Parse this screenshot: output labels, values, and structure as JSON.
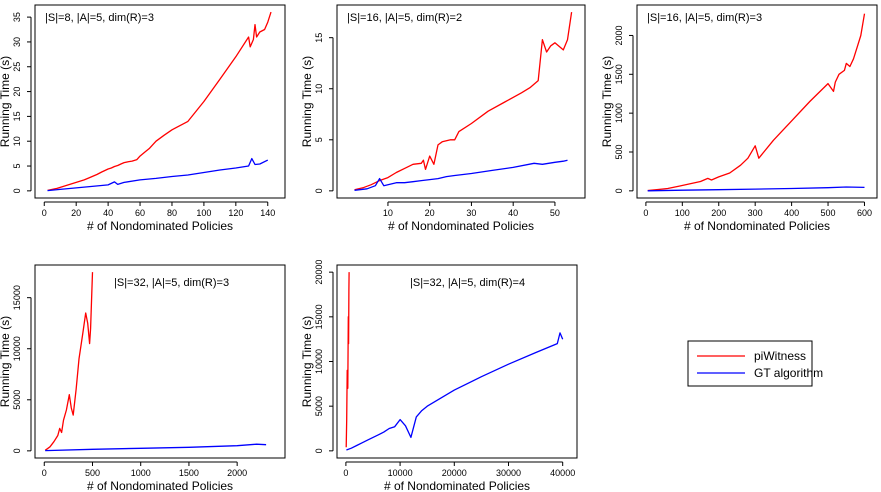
{
  "chart_data": [
    {
      "type": "line",
      "title": "|S|=8, |A|=5, dim(R)=3",
      "xlabel": "# of Nondominated Policies",
      "ylabel": "Running Time (s)",
      "xlim": [
        0,
        145
      ],
      "ylim": [
        0,
        36
      ],
      "xticks": [
        0,
        20,
        40,
        60,
        80,
        100,
        120,
        140
      ],
      "yticks": [
        0,
        5,
        10,
        15,
        20,
        25,
        30,
        35
      ],
      "series": [
        {
          "name": "piWitness",
          "color": "#ff0000",
          "x": [
            2,
            5,
            8,
            12,
            15,
            18,
            22,
            25,
            28,
            30,
            33,
            36,
            38,
            40,
            42,
            44,
            46,
            48,
            50,
            53,
            55,
            58,
            60,
            63,
            66,
            70,
            75,
            80,
            90,
            100,
            110,
            120,
            128,
            129,
            131,
            132,
            133,
            135,
            138,
            140,
            142
          ],
          "y": [
            0.1,
            0.3,
            0.5,
            0.9,
            1.2,
            1.5,
            1.9,
            2.2,
            2.6,
            2.9,
            3.3,
            3.8,
            4.1,
            4.4,
            4.6,
            4.9,
            5.1,
            5.4,
            5.7,
            5.9,
            6.0,
            6.3,
            7.0,
            7.8,
            8.6,
            10.0,
            11.2,
            12.3,
            14.0,
            18.0,
            22.5,
            27.0,
            31.0,
            29.0,
            30.5,
            33.5,
            31.0,
            32.0,
            32.5,
            34.0,
            36.0
          ]
        },
        {
          "name": "GT algorithm",
          "color": "#0000ff",
          "x": [
            2,
            10,
            20,
            30,
            40,
            44,
            46,
            50,
            60,
            70,
            80,
            90,
            100,
            110,
            120,
            128,
            130,
            132,
            135,
            140
          ],
          "y": [
            0.05,
            0.3,
            0.6,
            0.9,
            1.2,
            1.8,
            1.3,
            1.7,
            2.2,
            2.5,
            2.9,
            3.2,
            3.7,
            4.2,
            4.6,
            5.0,
            6.5,
            5.3,
            5.4,
            6.2
          ]
        }
      ]
    },
    {
      "type": "line",
      "title": "|S|=16, |A|=5, dim(R)=2",
      "xlabel": "# of Nondominated Policies",
      "ylabel": "Running Time (s)",
      "xlim": [
        0,
        55
      ],
      "ylim": [
        0,
        17.5
      ],
      "xticks": [
        10,
        20,
        30,
        40,
        50
      ],
      "yticks": [
        0,
        5,
        10,
        15
      ],
      "series": [
        {
          "name": "piWitness",
          "color": "#ff0000",
          "x": [
            2,
            4,
            6,
            8,
            10,
            12,
            14,
            16,
            18,
            18.5,
            19,
            20,
            21,
            22,
            23,
            24,
            25,
            26,
            27,
            30,
            34,
            38,
            42,
            44,
            46,
            47,
            48,
            49,
            50,
            52,
            53,
            54
          ],
          "y": [
            0.1,
            0.3,
            0.6,
            1.0,
            1.3,
            1.8,
            2.2,
            2.6,
            2.7,
            3.0,
            2.1,
            3.4,
            2.6,
            4.5,
            4.8,
            4.9,
            5.0,
            5.0,
            5.8,
            6.6,
            7.8,
            8.7,
            9.6,
            10.1,
            10.8,
            14.8,
            13.6,
            14.2,
            14.5,
            13.8,
            14.8,
            17.5
          ]
        },
        {
          "name": "GT algorithm",
          "color": "#0000ff",
          "x": [
            2,
            5,
            7,
            8,
            9,
            10,
            12,
            14,
            16,
            18,
            20,
            22,
            24,
            26,
            28,
            30,
            35,
            40,
            45,
            47,
            50,
            52,
            53
          ],
          "y": [
            0.05,
            0.2,
            0.5,
            1.2,
            0.5,
            0.6,
            0.8,
            0.8,
            0.9,
            1.0,
            1.1,
            1.2,
            1.4,
            1.5,
            1.6,
            1.7,
            2.0,
            2.3,
            2.7,
            2.6,
            2.8,
            2.9,
            3.0
          ]
        }
      ]
    },
    {
      "type": "line",
      "title": "|S|=16, |A|=5, dim(R)=3",
      "xlabel": "# of Nondominated Policies",
      "ylabel": "Running Time (s)",
      "xlim": [
        0,
        610
      ],
      "ylim": [
        0,
        2300
      ],
      "xticks": [
        0,
        100,
        200,
        300,
        400,
        500,
        600
      ],
      "yticks": [
        0,
        500,
        1000,
        1500,
        2000
      ],
      "series": [
        {
          "name": "piWitness",
          "color": "#ff0000",
          "x": [
            5,
            30,
            60,
            90,
            120,
            150,
            170,
            180,
            200,
            230,
            260,
            280,
            300,
            310,
            350,
            400,
            450,
            500,
            515,
            520,
            530,
            545,
            550,
            560,
            570,
            580,
            590,
            600
          ],
          "y": [
            5,
            15,
            30,
            60,
            90,
            120,
            160,
            140,
            180,
            230,
            330,
            420,
            580,
            420,
            650,
            900,
            1150,
            1380,
            1280,
            1400,
            1500,
            1550,
            1640,
            1600,
            1700,
            1850,
            2000,
            2280
          ]
        },
        {
          "name": "GT algorithm",
          "color": "#0000ff",
          "x": [
            5,
            100,
            200,
            300,
            400,
            500,
            550,
            600
          ],
          "y": [
            1,
            8,
            15,
            22,
            30,
            40,
            50,
            45
          ]
        }
      ]
    },
    {
      "type": "line",
      "title": "|S|=32, |A|=5, dim(R)=3",
      "xlabel": "# of Nondominated Policies",
      "ylabel": "Running Time (s)",
      "xlim": [
        0,
        2400
      ],
      "ylim": [
        0,
        17500
      ],
      "xticks": [
        0,
        500,
        1000,
        1500,
        2000
      ],
      "yticks": [
        0,
        5000,
        10000,
        15000
      ],
      "series": [
        {
          "name": "piWitness",
          "color": "#ff0000",
          "x": [
            10,
            60,
            100,
            140,
            160,
            180,
            200,
            230,
            260,
            280,
            300,
            330,
            360,
            400,
            430,
            450,
            470,
            480,
            500
          ],
          "y": [
            50,
            400,
            900,
            1500,
            2200,
            1800,
            3000,
            4000,
            5500,
            4200,
            3500,
            6000,
            9000,
            11500,
            13500,
            12500,
            10500,
            12000,
            17500
          ]
        },
        {
          "name": "GT algorithm",
          "color": "#0000ff",
          "x": [
            10,
            500,
            1000,
            1500,
            2000,
            2200,
            2300
          ],
          "y": [
            20,
            150,
            250,
            350,
            500,
            650,
            600
          ]
        }
      ]
    },
    {
      "type": "line",
      "title": "|S|=32, |A|=5, dim(R)=4",
      "xlabel": "# of Nondominated Policies",
      "ylabel": "Running Time (s)",
      "xlim": [
        0,
        41000
      ],
      "ylim": [
        0,
        20000
      ],
      "xticks": [
        0,
        10000,
        20000,
        30000,
        40000
      ],
      "yticks": [
        0,
        5000,
        10000,
        15000,
        20000
      ],
      "series": [
        {
          "name": "piWitness",
          "color": "#ff0000",
          "x": [
            50,
            150,
            250,
            350,
            450,
            500,
            550,
            600
          ],
          "y": [
            400,
            3500,
            9000,
            7000,
            15000,
            12000,
            18000,
            20000
          ]
        },
        {
          "name": "GT algorithm",
          "color": "#0000ff",
          "x": [
            100,
            1000,
            2000,
            3000,
            4000,
            5000,
            6000,
            7000,
            8000,
            9000,
            10000,
            11000,
            12000,
            13000,
            14000,
            15000,
            20000,
            25000,
            30000,
            35000,
            39000,
            39500,
            40000
          ],
          "y": [
            100,
            300,
            600,
            900,
            1200,
            1500,
            1800,
            2100,
            2500,
            2700,
            3500,
            2800,
            1500,
            3800,
            4500,
            5000,
            6800,
            8300,
            9700,
            11000,
            12000,
            13200,
            12500
          ]
        }
      ]
    }
  ],
  "legend": {
    "placement": "bottom-right",
    "items": [
      {
        "label": "piWitness",
        "color": "#ff0000"
      },
      {
        "label": "GT algorithm",
        "color": "#0000ff"
      }
    ]
  }
}
